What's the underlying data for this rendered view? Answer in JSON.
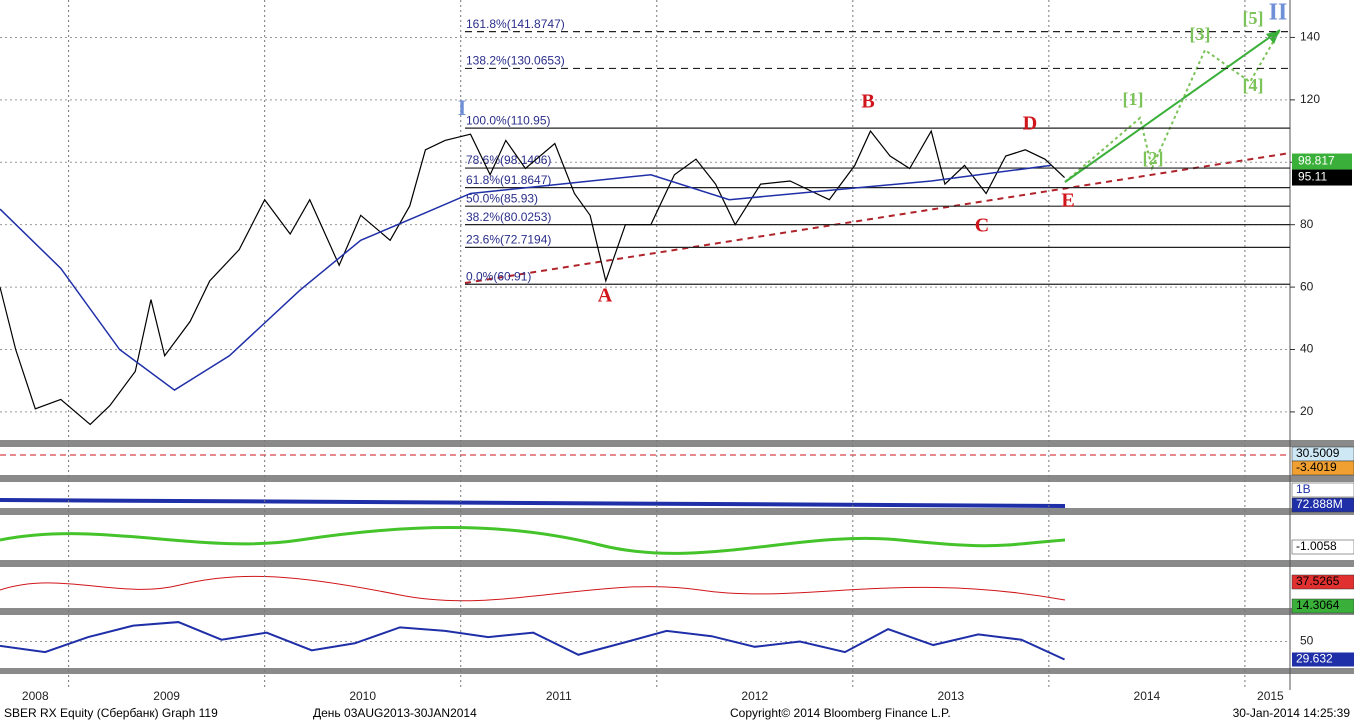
{
  "chart_data": {
    "type": "line",
    "xlim": [
      2008.65,
      2015.23
    ],
    "ylim": [
      11,
      152
    ],
    "xticks": [
      {
        "value": 2008.83,
        "label": "2008"
      },
      {
        "value": 2009.5,
        "label": "2009"
      },
      {
        "value": 2010.5,
        "label": "2010"
      },
      {
        "value": 2011.5,
        "label": "2011"
      },
      {
        "value": 2012.5,
        "label": "2012"
      },
      {
        "value": 2013.5,
        "label": "2013"
      },
      {
        "value": 2014.5,
        "label": "2014"
      },
      {
        "value": 2015.13,
        "label": "2015"
      }
    ],
    "yticks": [
      20,
      40,
      60,
      80,
      100,
      120,
      140
    ],
    "grid": true,
    "series": [
      {
        "color": "#000000",
        "x": [
          2008.65,
          2008.73,
          2008.83,
          2008.96,
          2009.11,
          2009.21,
          2009.34,
          2009.42,
          2009.49,
          2009.62,
          2009.72,
          2009.87,
          2010.0,
          2010.13,
          2010.23,
          2010.33,
          2010.38,
          2010.49,
          2010.64,
          2010.74,
          2010.82,
          2010.92,
          2011.05,
          2011.15,
          2011.23,
          2011.33,
          2011.48,
          2011.58,
          2011.66,
          2011.74,
          2011.84,
          2011.97,
          2012.09,
          2012.2,
          2012.3,
          2012.4,
          2012.53,
          2012.68,
          2012.78,
          2012.88,
          2013.01,
          2013.09,
          2013.19,
          2013.29,
          2013.4,
          2013.47,
          2013.57,
          2013.68,
          2013.78,
          2013.88,
          2013.98,
          2014.08
        ],
        "values": [
          60,
          40,
          21,
          24,
          16,
          22,
          33,
          56,
          38,
          49,
          62,
          72,
          88,
          77,
          88,
          74,
          67,
          83,
          75,
          86,
          104,
          107,
          109,
          96,
          107,
          98,
          106,
          90,
          83,
          62,
          80,
          80,
          96,
          101,
          93,
          80,
          93,
          94,
          91,
          88,
          99,
          110,
          102,
          98,
          110,
          93,
          99,
          90,
          102,
          104,
          101,
          95.11
        ]
      },
      {
        "color": "#1f2fa8",
        "x": [
          2008.65,
          2008.96,
          2009.26,
          2009.54,
          2009.82,
          2010.18,
          2010.49,
          2010.79,
          2011.05,
          2011.51,
          2011.97,
          2012.37,
          2012.88,
          2013.4,
          2014.01
        ],
        "values": [
          85,
          66,
          40,
          27,
          38,
          59,
          75,
          83,
          90,
          93,
          96,
          88,
          91,
          94,
          99
        ]
      }
    ],
    "fib_levels": [
      {
        "label": "161.8%(141.8747)",
        "value": 141.8747,
        "dashed": true
      },
      {
        "label": "138.2%(130.0653)",
        "value": 130.0653,
        "dashed": true
      },
      {
        "label": "100.0%(110.95)",
        "value": 110.95,
        "dashed": false
      },
      {
        "label": "78.6%(98.1406)",
        "value": 98.1406,
        "dashed": false
      },
      {
        "label": "61.8%(91.8647)",
        "value": 91.8647,
        "dashed": false
      },
      {
        "label": "50.0%(85.93)",
        "value": 85.93,
        "dashed": false
      },
      {
        "label": "38.2%(80.0253)",
        "value": 80.0253,
        "dashed": false
      },
      {
        "label": "23.6%(72.7194)",
        "value": 72.7194,
        "dashed": false
      },
      {
        "label": "0.0%(60.91)",
        "value": 60.91,
        "dashed": false
      }
    ],
    "annotations": [
      {
        "text": "I",
        "color": "#6f8fd6"
      },
      {
        "text": "A",
        "color": "#d0161b"
      },
      {
        "text": "B",
        "color": "#d0161b"
      },
      {
        "text": "C",
        "color": "#d0161b"
      },
      {
        "text": "D",
        "color": "#d0161b"
      },
      {
        "text": "E",
        "color": "#d0161b"
      },
      {
        "text": "II",
        "color": "#6f8fd6"
      },
      {
        "text": "[1]",
        "color": "#7cc35a"
      },
      {
        "text": "[2]",
        "color": "#7cc35a"
      },
      {
        "text": "[3]",
        "color": "#7cc35a"
      },
      {
        "text": "[4]",
        "color": "#7cc35a"
      },
      {
        "text": "[5]",
        "color": "#7cc35a"
      }
    ],
    "ma_label": "98.817",
    "indicator_labels": [
      "30.5009",
      "-3.4019",
      "1B",
      "72.888M",
      "-1.0058",
      "37.5265",
      "14.3064"
    ],
    "rsi": {
      "color": "#1f2fa8",
      "ylim": [
        20,
        80
      ],
      "yticks": [
        50
      ],
      "x": [
        2008.65,
        2008.88,
        2009.1,
        2009.33,
        2009.56,
        2009.78,
        2010.01,
        2010.24,
        2010.46,
        2010.69,
        2010.92,
        2011.14,
        2011.37,
        2011.6,
        2011.82,
        2012.05,
        2012.28,
        2012.5,
        2012.73,
        2012.96,
        2013.18,
        2013.41,
        2013.64,
        2013.86,
        2014.08
      ],
      "values": [
        45,
        38,
        55,
        68,
        72,
        52,
        60,
        40,
        48,
        66,
        62,
        55,
        60,
        35,
        48,
        62,
        56,
        44,
        50,
        38,
        64,
        46,
        58,
        52,
        29.632
      ]
    },
    "footer": {
      "left": "SBER RX Equity (Сбербанк) Graph 119",
      "period": "День 03AUG2013-30JAN2014",
      "copyright": "Copyright© 2014 Bloomberg Finance L.P.",
      "timestamp": "30-Jan-2014 14:25:39"
    }
  }
}
